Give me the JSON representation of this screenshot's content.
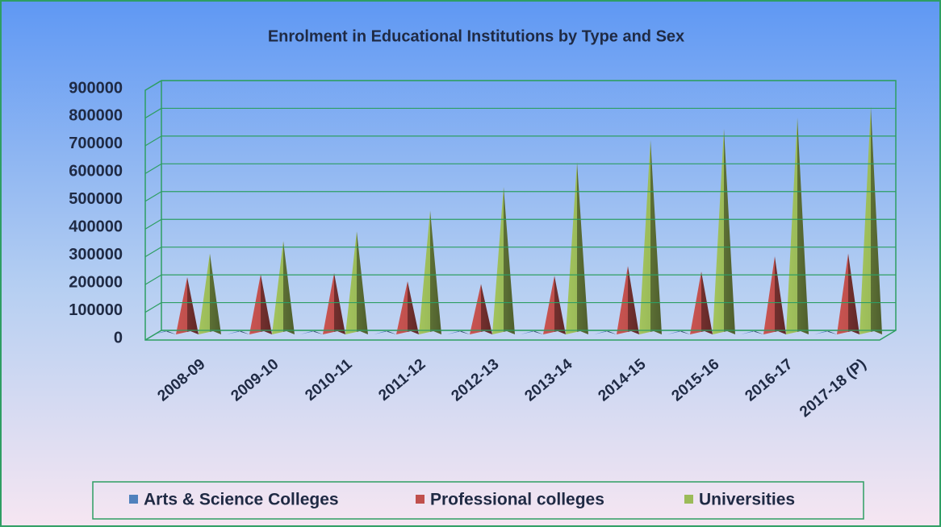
{
  "chart_data": {
    "type": "pyramid",
    "title": "Enrolment in Educational Institutions by Type and Sex",
    "categories": [
      "2008-09",
      "2009-10",
      "2010-11",
      "2011-12",
      "2012-13",
      "2013-14",
      "2014-15",
      "2015-16",
      "2016-17",
      "2017-18 (P)"
    ],
    "series": [
      {
        "name": "Arts & Science Colleges",
        "color": "#4f81bd",
        "values": [
          0,
          0,
          0,
          0,
          0,
          0,
          0,
          0,
          0,
          0
        ]
      },
      {
        "name": "Professional colleges",
        "color": "#c0504d",
        "values": [
          215000,
          225000,
          230000,
          200000,
          190000,
          220000,
          255000,
          235000,
          290000,
          300000
        ]
      },
      {
        "name": "Universities",
        "color": "#9bbb59",
        "values": [
          300000,
          345000,
          380000,
          455000,
          540000,
          630000,
          710000,
          750000,
          790000,
          830000
        ]
      }
    ],
    "ylim": [
      0,
      900000
    ],
    "yticks": [
      0,
      100000,
      200000,
      300000,
      400000,
      500000,
      600000,
      700000,
      800000,
      900000
    ],
    "grid": true
  }
}
